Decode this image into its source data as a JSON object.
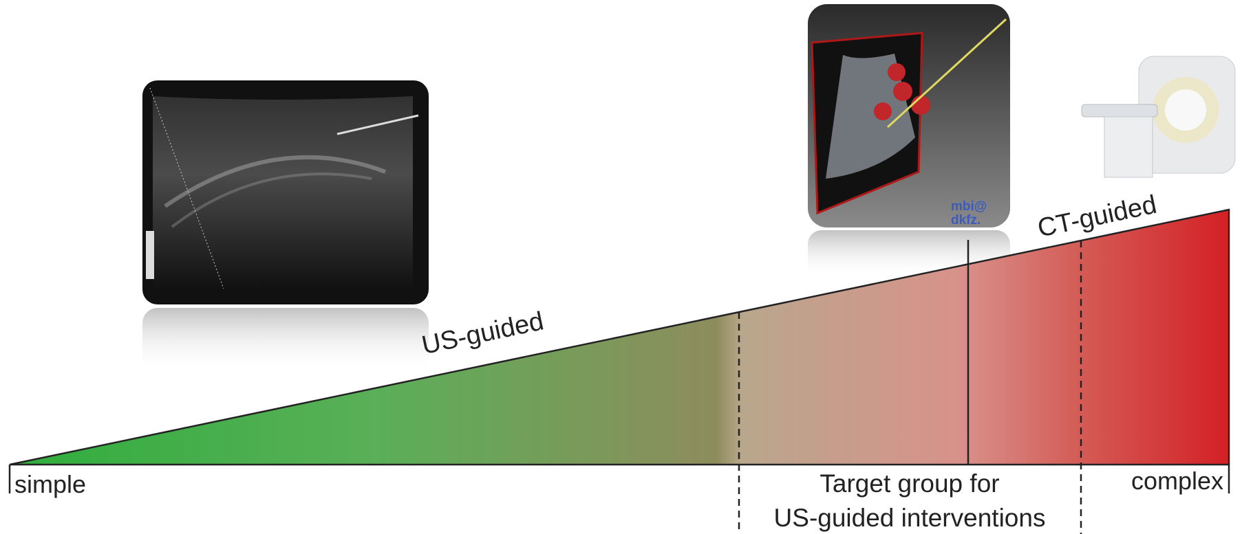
{
  "labels": {
    "us_guided": "US-guided",
    "ct_guided": "CT-guided",
    "simple": "simple",
    "complex": "complex",
    "target_group": [
      "Target group for",
      "US-guided interventions"
    ]
  },
  "logo": [
    "mbi@",
    "dkfz."
  ]
}
